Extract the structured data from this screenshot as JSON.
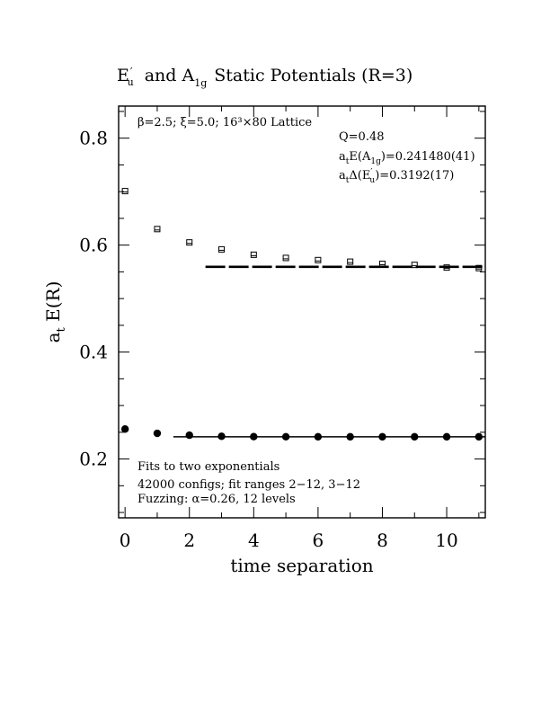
{
  "chart_data": {
    "type": "scatter",
    "title": {
      "part1": "E",
      "part1_prime": "′",
      "part1_sub": "u",
      "part2": "and A",
      "part2_sub": "1g",
      "part3": "Static Potentials (R=3)"
    },
    "xlabel": "time separation",
    "ylabel": {
      "main": "a",
      "sub": "t",
      "rest": " E(R)"
    },
    "xlim": [
      -0.2,
      11.2
    ],
    "ylim": [
      0.09,
      0.86
    ],
    "xticks": [
      0,
      2,
      4,
      6,
      8,
      10
    ],
    "xtick_labels": [
      "0",
      "2",
      "4",
      "6",
      "8",
      "10"
    ],
    "yticks": [
      0.2,
      0.4,
      0.6,
      0.8
    ],
    "ytick_labels": [
      "0.2",
      "0.4",
      "0.6",
      "0.8"
    ],
    "series": [
      {
        "marker": "open-square",
        "x": [
          0,
          1,
          2,
          3,
          4,
          5,
          6,
          7,
          8,
          9,
          10,
          11
        ],
        "y": [
          0.701,
          0.63,
          0.605,
          0.592,
          0.582,
          0.576,
          0.572,
          0.569,
          0.565,
          0.563,
          0.558,
          0.557
        ],
        "fit": {
          "x": [
            2.5,
            11.2
          ],
          "y": 0.5593,
          "style": "dashed"
        }
      },
      {
        "marker": "filled-circle",
        "x": [
          0,
          1,
          2,
          3,
          4,
          5,
          6,
          7,
          8,
          9,
          10,
          11
        ],
        "y": [
          0.256,
          0.248,
          0.2445,
          0.2425,
          0.2418,
          0.2416,
          0.2415,
          0.2415,
          0.2415,
          0.2415,
          0.2415,
          0.2415
        ],
        "fit": {
          "x": [
            1.5,
            11.2
          ],
          "y": 0.2415,
          "style": "solid"
        }
      }
    ],
    "annotations": {
      "lattice": "β=2.5; ξ=5.0; 16³×80 Lattice",
      "q": "Q=0.48",
      "e_a1g": {
        "pre": "a",
        "pre_sub": "t",
        "mid": "E(A",
        "mid_sub": "1g",
        "post": ")=0.241480(41)"
      },
      "delta_eu": {
        "pre": "a",
        "pre_sub": "t",
        "mid": "Δ(E",
        "mid_prime": "′",
        "mid_sub": "u",
        "post": ")=0.3192(17)"
      },
      "fits": "Fits to two exponentials",
      "configs": "42000 configs; fit ranges 2−12, 3−12",
      "fuzzing": "Fuzzing: α=0.26, 12 levels"
    }
  }
}
